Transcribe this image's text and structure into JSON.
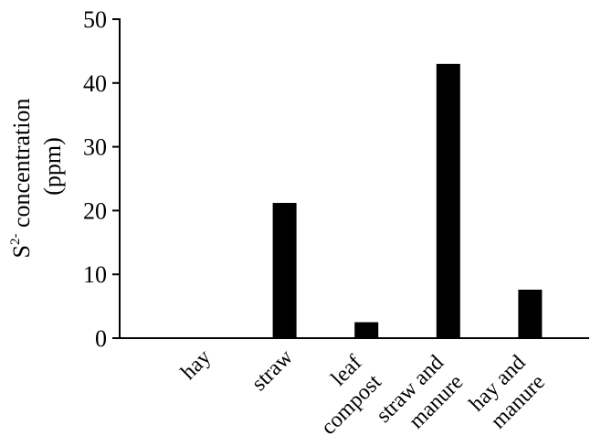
{
  "chart_data": {
    "type": "bar",
    "title": "",
    "xlabel": "",
    "ylabel": {
      "line1_base": "S",
      "line1_sup": "2-",
      "line1_rest": " concentration",
      "line2": "(ppm)"
    },
    "categories": [
      [
        "hay"
      ],
      [
        "straw"
      ],
      [
        "leaf",
        "compost"
      ],
      [
        "straw and",
        "manure"
      ],
      [
        "hay and",
        "manure"
      ]
    ],
    "values": [
      0,
      21.2,
      2.5,
      43,
      7.6
    ],
    "ylim": [
      0,
      50
    ],
    "yticks": [
      0,
      10,
      20,
      30,
      40,
      50
    ],
    "grid": false,
    "bar_color": "#000000",
    "axis_color": "#000000"
  }
}
